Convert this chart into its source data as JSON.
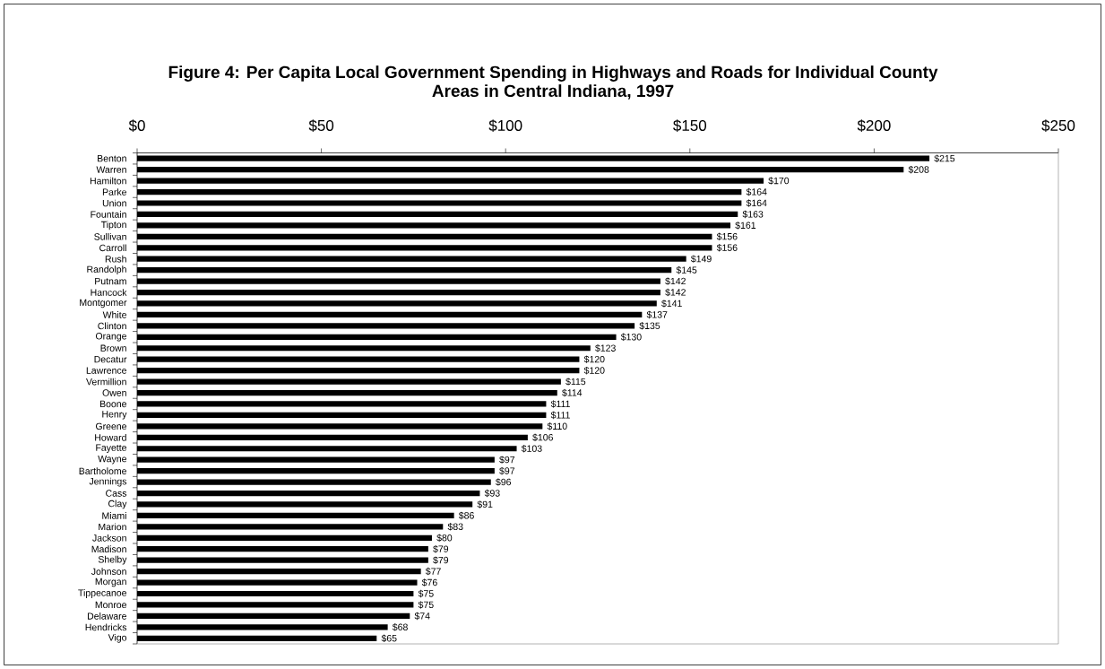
{
  "chart_data": {
    "type": "bar",
    "orientation": "horizontal",
    "title": "Figure 4: Per Capita Local Government Spending in Highways and Roads for Individual County Areas in Central Indiana, 1997",
    "categories": [
      "Benton",
      "Warren",
      "Hamilton",
      "Parke",
      "Union",
      "Fountain",
      "Tipton",
      "Sullivan",
      "Carroll",
      "Rush",
      "Randolph",
      "Putnam",
      "Hancock",
      "Montgomer",
      "White",
      "Clinton",
      "Orange",
      "Brown",
      "Decatur",
      "Lawrence",
      "Vermillion",
      "Owen",
      "Boone",
      "Henry",
      "Greene",
      "Howard",
      "Fayette",
      "Wayne",
      "Bartholome",
      "Jennings",
      "Cass",
      "Clay",
      "Miami",
      "Marion",
      "Jackson",
      "Madison",
      "Shelby",
      "Johnson",
      "Morgan",
      "Tippecanoe",
      "Monroe",
      "Delaware",
      "Hendricks",
      "Vigo"
    ],
    "values": [
      215,
      208,
      170,
      164,
      164,
      163,
      161,
      156,
      156,
      149,
      145,
      142,
      142,
      141,
      137,
      135,
      130,
      123,
      120,
      120,
      115,
      114,
      111,
      111,
      110,
      106,
      103,
      97,
      97,
      96,
      93,
      91,
      86,
      83,
      80,
      79,
      79,
      77,
      76,
      75,
      75,
      74,
      68,
      65
    ],
    "value_labels": [
      "$215",
      "$208",
      "$170",
      "$164",
      "$164",
      "$163",
      "$161",
      "$156",
      "$156",
      "$149",
      "$145",
      "$142",
      "$142",
      "$141",
      "$137",
      "$135",
      "$130",
      "$123",
      "$120",
      "$120",
      "$115",
      "$114",
      "$111",
      "$111",
      "$110",
      "$106",
      "$103",
      "$97",
      "$97",
      "$96",
      "$93",
      "$91",
      "$86",
      "$83",
      "$80",
      "$79",
      "$79",
      "$77",
      "$76",
      "$75",
      "$75",
      "$74",
      "$68",
      "$65"
    ],
    "color": "#000000",
    "xlim": [
      0,
      250
    ],
    "xticks": [
      {
        "value": 0,
        "label": "$0"
      },
      {
        "value": 50,
        "label": "$50"
      },
      {
        "value": 100,
        "label": "$100"
      },
      {
        "value": 150,
        "label": "$150"
      },
      {
        "value": 200,
        "label": "$200"
      },
      {
        "value": 250,
        "label": "$250"
      }
    ]
  }
}
